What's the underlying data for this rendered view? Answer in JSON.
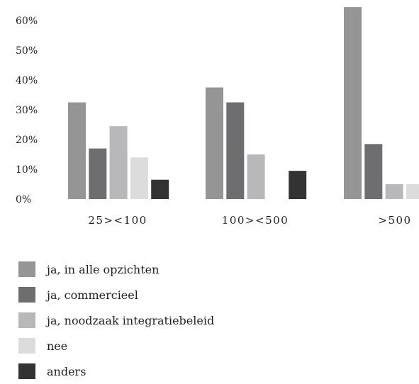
{
  "chart_data": {
    "type": "bar",
    "categories": [
      "25><100",
      "100><500",
      ">500"
    ],
    "series": [
      {
        "name": "ja, in alle opzichten",
        "color": "#959595",
        "values": [
          32.5,
          37.5,
          64.5
        ]
      },
      {
        "name": "ja, commercieel",
        "color": "#6e6e70",
        "values": [
          17,
          32.5,
          18.5
        ]
      },
      {
        "name": "ja, noodzaak integratiebeleid",
        "color": "#b8b8ba",
        "values": [
          24.5,
          15,
          5
        ]
      },
      {
        "name": "nee",
        "color": "#dcdcdc",
        "values": [
          14,
          0,
          5
        ]
      },
      {
        "name": "anders",
        "color": "#333333",
        "values": [
          6.5,
          9.5,
          0
        ]
      }
    ],
    "yticks": [
      "0%",
      "10%",
      "20%",
      "30%",
      "40%",
      "50%",
      "60%"
    ],
    "ylim": [
      0,
      65
    ],
    "grid": false,
    "legend_position": "bottom-left",
    "title": "",
    "xlabel": "",
    "ylabel": ""
  }
}
